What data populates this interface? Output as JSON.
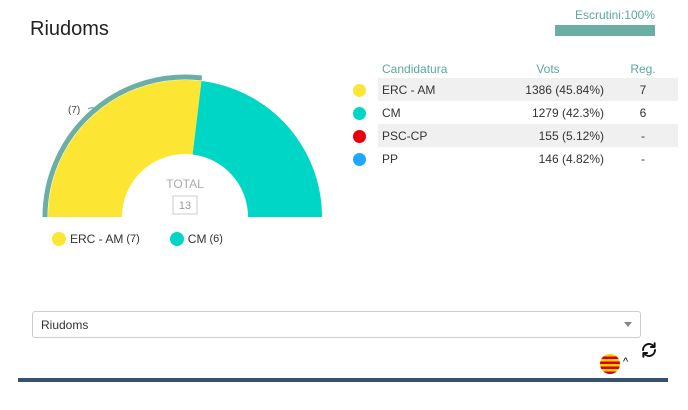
{
  "title": "Riudoms",
  "scrutiny": {
    "label": "Escrutini:100%",
    "progress": 1.0
  },
  "chart_data": {
    "type": "pie",
    "variant": "parliament-half-donut",
    "center_label": "TOTAL",
    "total": "13",
    "seats_badge": "(7)",
    "slices": [
      {
        "name": "ERC - AM",
        "value": 7,
        "color": "#fde533"
      },
      {
        "name": "CM",
        "value": 6,
        "color": "#00d6c5"
      }
    ],
    "majority_arc_color": "#6aaea4"
  },
  "legend": [
    {
      "name": "ERC - AM",
      "count": "(7)",
      "color": "#fde533"
    },
    {
      "name": "CM",
      "count": "(6)",
      "color": "#00d6c5"
    }
  ],
  "table": {
    "headers": {
      "party": "Candidatura",
      "votes": "Vots",
      "reg": "Reg."
    },
    "rows": [
      {
        "color": "#fde533",
        "party": "ERC - AM",
        "votes": "1386 (45.84%)",
        "reg": "7"
      },
      {
        "color": "#00d6c5",
        "party": "CM",
        "votes": "1279 (42.3%)",
        "reg": "6"
      },
      {
        "color": "#e8000d",
        "party": "PSC-CP",
        "votes": "155 (5.12%)",
        "reg": "-"
      },
      {
        "color": "#1ea7ff",
        "party": "PP",
        "votes": "146 (4.82%)",
        "reg": "-"
      }
    ]
  },
  "select": {
    "value": "Riudoms"
  },
  "icons": {
    "flag": "catalan-flag-icon",
    "chevron": "chevron-up-icon",
    "refresh": "refresh-icon"
  },
  "colors": {
    "accent": "#5aa89c",
    "footer": "#36516b"
  }
}
